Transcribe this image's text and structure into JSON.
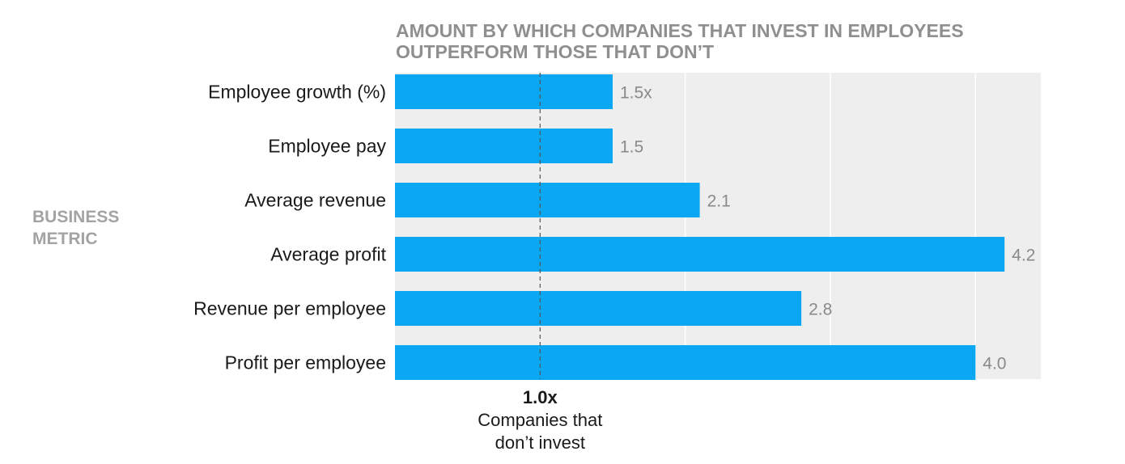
{
  "chart_data": {
    "type": "bar",
    "orientation": "horizontal",
    "title_lines": [
      "AMOUNT BY WHICH COMPANIES THAT INVEST IN EMPLOYEES",
      "OUTPERFORM THOSE THAT DON’T"
    ],
    "ylabel_lines": [
      "BUSINESS",
      "METRIC"
    ],
    "categories": [
      "Employee growth (%)",
      "Employee pay",
      "Average revenue",
      "Average profit",
      "Revenue per employee",
      "Profit per employee"
    ],
    "values": [
      1.5,
      1.5,
      2.1,
      4.2,
      2.8,
      4.0
    ],
    "value_labels": [
      "1.5x",
      "1.5",
      "2.1",
      "4.2",
      "2.8",
      "4.0"
    ],
    "xlim": [
      0,
      4.45
    ],
    "gridlines_at": [
      2,
      3,
      4
    ],
    "reference": {
      "value": 1.0,
      "label": "1.0x",
      "caption_lines": [
        "Companies that",
        "don’t invest"
      ],
      "line_style": "dashed"
    },
    "grid": true,
    "legend": "none",
    "colors": {
      "bar": "#0ba7f2",
      "background": "#eeeeee",
      "gridline": "#ffffff",
      "reference_line": "#555555"
    }
  }
}
